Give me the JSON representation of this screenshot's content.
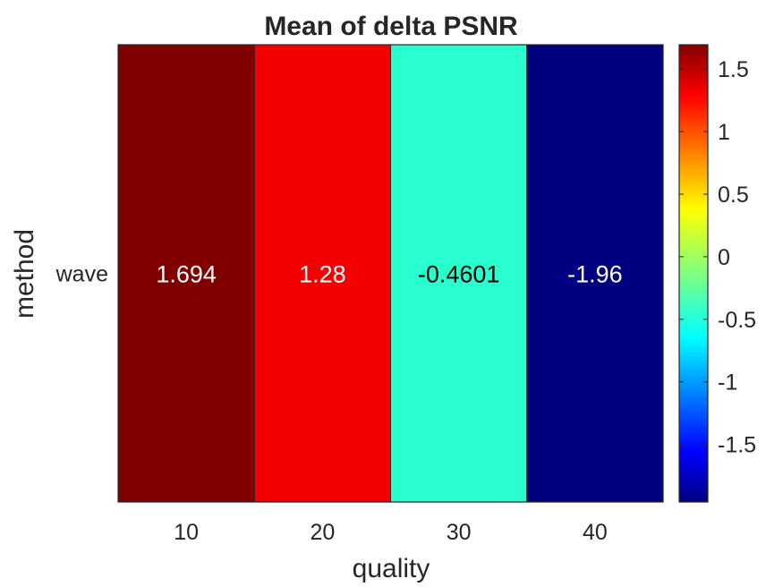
{
  "chart_data": {
    "type": "heatmap",
    "title": "Mean of delta PSNR",
    "xlabel": "quality",
    "ylabel": "method",
    "x_categories": [
      "10",
      "20",
      "30",
      "40"
    ],
    "y_categories": [
      "wave"
    ],
    "values": [
      [
        1.694,
        1.28,
        -0.4601,
        -1.96
      ]
    ],
    "cell_labels": [
      "1.694",
      "1.28",
      "-0.4601",
      "-1.96"
    ],
    "colormap": "jet",
    "color_range": [
      -1.96,
      1.694
    ],
    "colorbar": {
      "ticks": [
        1.5,
        1,
        0.5,
        0,
        -0.5,
        -1,
        -1.5
      ],
      "tick_labels": [
        "1.5",
        "1",
        "0.5",
        "0",
        "-0.5",
        "-1",
        "-1.5"
      ]
    },
    "cell_colors": [
      "#800000",
      "#f50000",
      "#29ffce",
      "#000080"
    ],
    "label_colors": [
      "#ffffff",
      "#ffffff",
      "#000000",
      "#ffffff"
    ]
  }
}
